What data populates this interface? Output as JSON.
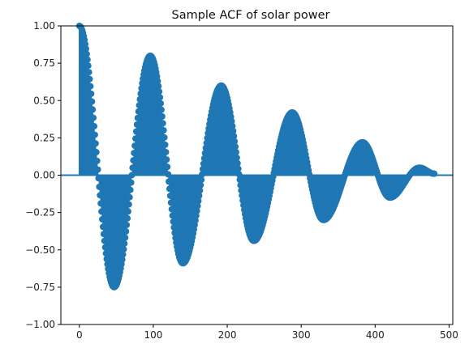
{
  "chart_data": {
    "type": "stem",
    "title": "Sample ACF of solar power",
    "xlabel": "",
    "ylabel": "",
    "xlim": [
      -25,
      505
    ],
    "ylim": [
      -1.0,
      1.0
    ],
    "xticks": [
      0,
      100,
      200,
      300,
      400,
      500
    ],
    "xtick_labels": [
      "0",
      "100",
      "200",
      "300",
      "400",
      "500"
    ],
    "yticks": [
      -1.0,
      -0.75,
      -0.5,
      -0.25,
      0.0,
      0.25,
      0.5,
      0.75,
      1.0
    ],
    "ytick_labels": [
      "−1.00",
      "−0.75",
      "−0.50",
      "−0.25",
      "0.00",
      "0.25",
      "0.50",
      "0.75",
      "1.00"
    ],
    "grid": false,
    "legend": "none",
    "color": "#1f77b4",
    "lags_first": 0,
    "lags_last": 480,
    "acf_shape": {
      "peak_lags": [
        0,
        96,
        192,
        288,
        383,
        460
      ],
      "peak_values": [
        1.0,
        0.8,
        0.6,
        0.42,
        0.22,
        0.05
      ],
      "trough_lags": [
        47,
        140,
        236,
        330,
        420
      ],
      "trough_values": [
        -0.75,
        -0.59,
        -0.44,
        -0.3,
        -0.15
      ],
      "end_lag": 480,
      "end_value": 0.01
    }
  }
}
